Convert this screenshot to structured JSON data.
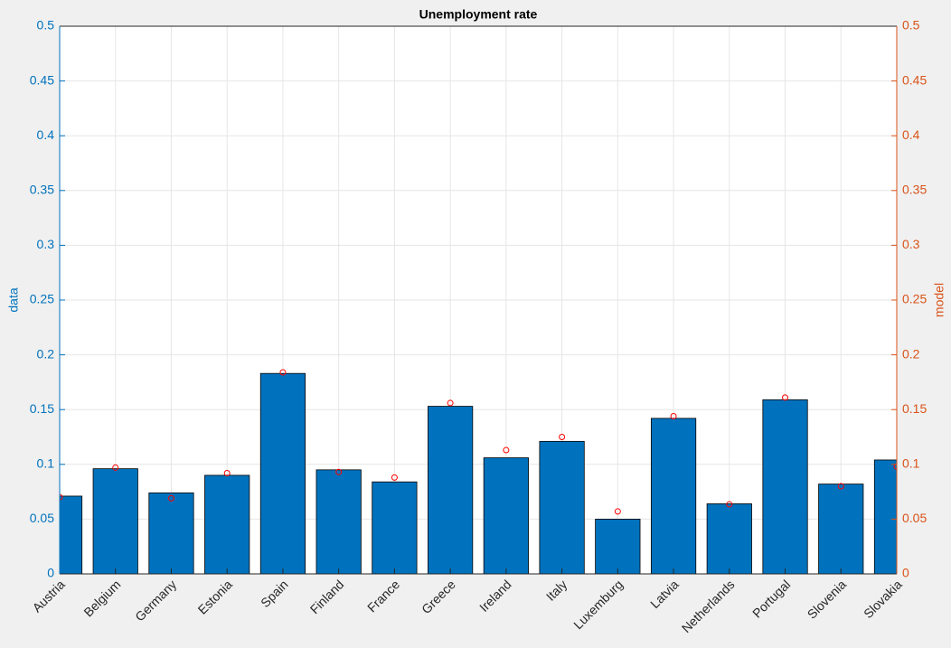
{
  "chart_data": {
    "type": "bar",
    "title": "Unemployment rate",
    "ylabel": "data",
    "y2label": "model",
    "categories": [
      "Austria",
      "Belgium",
      "Germany",
      "Estonia",
      "Spain",
      "Finland",
      "France",
      "Greece",
      "Ireland",
      "Italy",
      "Luxemburg",
      "Latvia",
      "Netherlands",
      "Portugal",
      "Slovenia",
      "Slovakia"
    ],
    "series": [
      {
        "name": "data",
        "color": "#0072bd",
        "values": [
          0.071,
          0.096,
          0.074,
          0.09,
          0.183,
          0.095,
          0.084,
          0.153,
          0.106,
          0.121,
          0.05,
          0.142,
          0.064,
          0.159,
          0.082,
          0.104
        ]
      },
      {
        "name": "model",
        "color": "#ff0000",
        "axis": "y2",
        "marker": "circle",
        "values": [
          0.07,
          0.097,
          0.069,
          0.092,
          0.184,
          0.093,
          0.088,
          0.156,
          0.113,
          0.125,
          0.057,
          0.144,
          0.0635,
          0.161,
          0.08,
          0.098
        ]
      }
    ],
    "ylim": [
      0,
      0.5
    ],
    "yticks": [
      0,
      0.05,
      0.1,
      0.15,
      0.2,
      0.25,
      0.3,
      0.35,
      0.4,
      0.45,
      0.5
    ],
    "y2lim": [
      0,
      0.5
    ],
    "y2ticks": [
      0,
      0.05,
      0.1,
      0.15,
      0.2,
      0.25,
      0.3,
      0.35,
      0.4,
      0.45,
      0.5
    ],
    "ycolor": "#0072bd",
    "y2color": "#d95319",
    "grid": true
  }
}
